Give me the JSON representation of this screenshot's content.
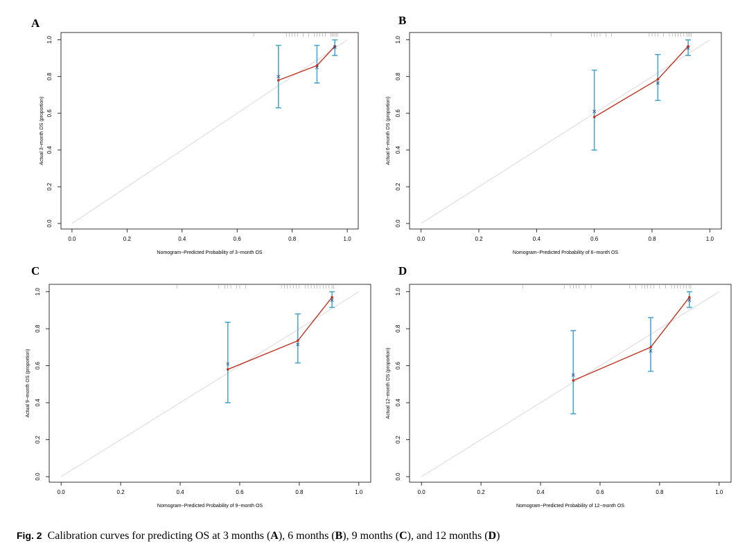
{
  "chart_data": [
    {
      "type": "line",
      "panel": "A",
      "xlabel": "Nomogram−Predicted Probability of 3−month OS",
      "ylabel": "Actual 3−month OS (proportion)",
      "xlim": [
        -0.04,
        1.04
      ],
      "ylim": [
        -0.03,
        1.04
      ],
      "xticks": [
        "0.0",
        "0.2",
        "0.4",
        "0.6",
        "0.8",
        "1.0"
      ],
      "yticks": [
        "0.0",
        "0.2",
        "0.4",
        "0.6",
        "0.8",
        "1.0"
      ],
      "ideal_line": [
        [
          0,
          0
        ],
        [
          1,
          1
        ]
      ],
      "points": [
        {
          "x": 0.75,
          "observed": 0.78,
          "corrected": 0.8,
          "lower": 0.63,
          "upper": 0.97
        },
        {
          "x": 0.89,
          "observed": 0.86,
          "corrected": 0.85,
          "lower": 0.765,
          "upper": 0.97
        },
        {
          "x": 0.955,
          "observed": 0.965,
          "corrected": 0.96,
          "lower": 0.915,
          "upper": 1.0
        }
      ],
      "rug": [
        0.66,
        0.78,
        0.79,
        0.8,
        0.81,
        0.82,
        0.84,
        0.86,
        0.88,
        0.89,
        0.9,
        0.91,
        0.92,
        0.94,
        0.945,
        0.95,
        0.955,
        0.96,
        0.965
      ]
    },
    {
      "type": "line",
      "panel": "B",
      "xlabel": "Nomogram−Predicted Probability of 6−month OS",
      "ylabel": "Actual 6−month OS (proportion)",
      "xlim": [
        -0.04,
        1.04
      ],
      "ylim": [
        -0.03,
        1.04
      ],
      "xticks": [
        "0.0",
        "0.2",
        "0.4",
        "0.6",
        "0.8",
        "1.0"
      ],
      "yticks": [
        "0.0",
        "0.2",
        "0.4",
        "0.6",
        "0.8",
        "1.0"
      ],
      "ideal_line": [
        [
          0,
          0
        ],
        [
          1,
          1
        ]
      ],
      "points": [
        {
          "x": 0.6,
          "observed": 0.58,
          "corrected": 0.61,
          "lower": 0.4,
          "upper": 0.835
        },
        {
          "x": 0.82,
          "observed": 0.785,
          "corrected": 0.765,
          "lower": 0.67,
          "upper": 0.92
        },
        {
          "x": 0.925,
          "observed": 0.965,
          "corrected": 0.955,
          "lower": 0.915,
          "upper": 1.0
        }
      ],
      "rug": [
        0.45,
        0.59,
        0.6,
        0.61,
        0.62,
        0.64,
        0.66,
        0.79,
        0.8,
        0.81,
        0.82,
        0.84,
        0.86,
        0.87,
        0.88,
        0.89,
        0.9,
        0.91,
        0.92,
        0.925,
        0.93,
        0.935
      ]
    },
    {
      "type": "line",
      "panel": "C",
      "xlabel": "Nomogram−Predicted Probability of 9−month OS",
      "ylabel": "Actual 9−month OS (proportion)",
      "xlim": [
        -0.04,
        1.04
      ],
      "ylim": [
        -0.03,
        1.04
      ],
      "xticks": [
        "0.0",
        "0.2",
        "0.4",
        "0.6",
        "0.8",
        "1.0"
      ],
      "yticks": [
        "0.0",
        "0.2",
        "0.4",
        "0.6",
        "0.8",
        "1.0"
      ],
      "ideal_line": [
        [
          0,
          0
        ],
        [
          1,
          1
        ]
      ],
      "points": [
        {
          "x": 0.56,
          "observed": 0.58,
          "corrected": 0.61,
          "lower": 0.4,
          "upper": 0.835
        },
        {
          "x": 0.795,
          "observed": 0.735,
          "corrected": 0.715,
          "lower": 0.615,
          "upper": 0.88
        },
        {
          "x": 0.91,
          "observed": 0.97,
          "corrected": 0.955,
          "lower": 0.915,
          "upper": 1.0
        }
      ],
      "rug": [
        0.39,
        0.53,
        0.55,
        0.56,
        0.57,
        0.59,
        0.6,
        0.62,
        0.74,
        0.75,
        0.76,
        0.77,
        0.78,
        0.79,
        0.8,
        0.82,
        0.83,
        0.84,
        0.85,
        0.86,
        0.87,
        0.88,
        0.89,
        0.9,
        0.91,
        0.915
      ]
    },
    {
      "type": "line",
      "panel": "D",
      "xlabel": "Nomogram−Predicted Probability of 12−month OS",
      "ylabel": "Actual 12−month OS (proportion)",
      "xlim": [
        -0.04,
        1.04
      ],
      "ylim": [
        -0.03,
        1.04
      ],
      "xticks": [
        "0.0",
        "0.2",
        "0.4",
        "0.6",
        "0.8",
        "1.0"
      ],
      "yticks": [
        "0.0",
        "0.2",
        "0.4",
        "0.6",
        "0.8",
        "1.0"
      ],
      "ideal_line": [
        [
          0,
          0
        ],
        [
          1,
          1
        ]
      ],
      "points": [
        {
          "x": 0.51,
          "observed": 0.52,
          "corrected": 0.55,
          "lower": 0.34,
          "upper": 0.79
        },
        {
          "x": 0.77,
          "observed": 0.7,
          "corrected": 0.68,
          "lower": 0.57,
          "upper": 0.86
        },
        {
          "x": 0.9,
          "observed": 0.97,
          "corrected": 0.955,
          "lower": 0.915,
          "upper": 1.0
        }
      ],
      "rug": [
        0.34,
        0.48,
        0.5,
        0.51,
        0.52,
        0.53,
        0.55,
        0.57,
        0.7,
        0.72,
        0.74,
        0.75,
        0.76,
        0.77,
        0.78,
        0.8,
        0.82,
        0.84,
        0.85,
        0.86,
        0.87,
        0.88,
        0.89,
        0.9,
        0.905
      ]
    }
  ],
  "colors": {
    "observed_line": "#c4321f",
    "error_bar": "#4aa8cc",
    "corrected_marker": "#1f4a8c",
    "ideal_line": "#d9d9d9",
    "rug": "#9a9a9a"
  },
  "caption": {
    "fig_label": "Fig. 2",
    "text_1": "Calibration curves for predicting OS at 3 months (",
    "a": "A",
    "text_2": "), 6 months (",
    "b": "B",
    "text_3": "), 9 months (",
    "c": "C",
    "text_4": "), and 12 months (",
    "d": "D",
    "text_5": ")"
  }
}
